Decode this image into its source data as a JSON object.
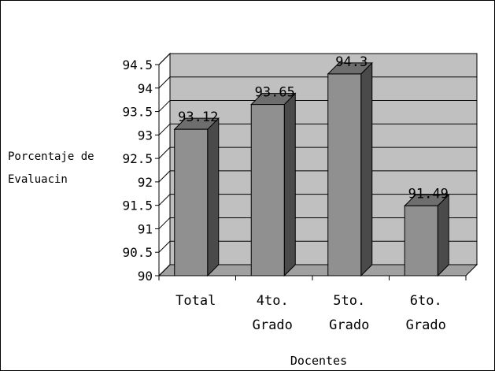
{
  "chart_data": {
    "type": "bar",
    "categories": [
      [
        "Total"
      ],
      [
        "4to.",
        "Grado"
      ],
      [
        "5to.",
        "Grado"
      ],
      [
        "6to.",
        "Grado"
      ]
    ],
    "values": [
      93.12,
      93.65,
      94.3,
      91.49
    ],
    "value_labels": [
      "93.12",
      "93.65",
      "94.3",
      "91.49"
    ],
    "xlabel": "Docentes",
    "ylabel": [
      "Porcentaje de",
      "Evaluacin"
    ],
    "ylim": [
      90,
      94.5
    ],
    "yticks": [
      "90",
      "90.5",
      "91",
      "91.5",
      "92",
      "92.5",
      "93",
      "93.5",
      "94",
      "94.5"
    ],
    "grid": true,
    "style": "3d",
    "colors": {
      "wall": "#c0c0c0",
      "floor": "#a0a0a0",
      "bar_front": "#909090",
      "bar_side": "#4a4a4a",
      "bar_top": "#6e6e6e",
      "grid": "#000000"
    }
  }
}
